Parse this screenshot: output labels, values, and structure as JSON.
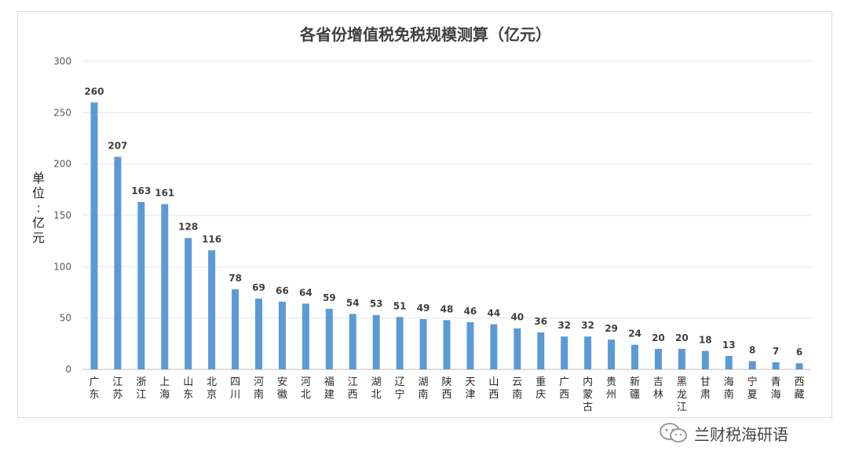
{
  "chart_data": {
    "type": "bar",
    "title": "各省份增值税免税规模测算（亿元）",
    "ylabel": "单位：亿元",
    "xlabel": "",
    "ylim": [
      0,
      300
    ],
    "yticks": [
      0,
      50,
      100,
      150,
      200,
      250,
      300
    ],
    "grid": true,
    "legend": "none",
    "bar_color": "#5b9bd5",
    "categories": [
      "广东",
      "江苏",
      "浙江",
      "上海",
      "山东",
      "北京",
      "四川",
      "河南",
      "安徽",
      "河北",
      "福建",
      "江西",
      "湖北",
      "辽宁",
      "湖南",
      "陕西",
      "天津",
      "山西",
      "云南",
      "重庆",
      "广西",
      "内蒙古",
      "贵州",
      "新疆",
      "吉林",
      "黑龙江",
      "甘肃",
      "海南",
      "宁夏",
      "青海",
      "西藏"
    ],
    "values": [
      260,
      207,
      163,
      161,
      128,
      116,
      78,
      69,
      66,
      64,
      59,
      54,
      53,
      51,
      49,
      48,
      46,
      44,
      40,
      36,
      32,
      32,
      29,
      24,
      20,
      20,
      18,
      13,
      8,
      7,
      6
    ]
  },
  "watermark": {
    "text": "兰财税海研语",
    "icon": "wechat-icon"
  }
}
